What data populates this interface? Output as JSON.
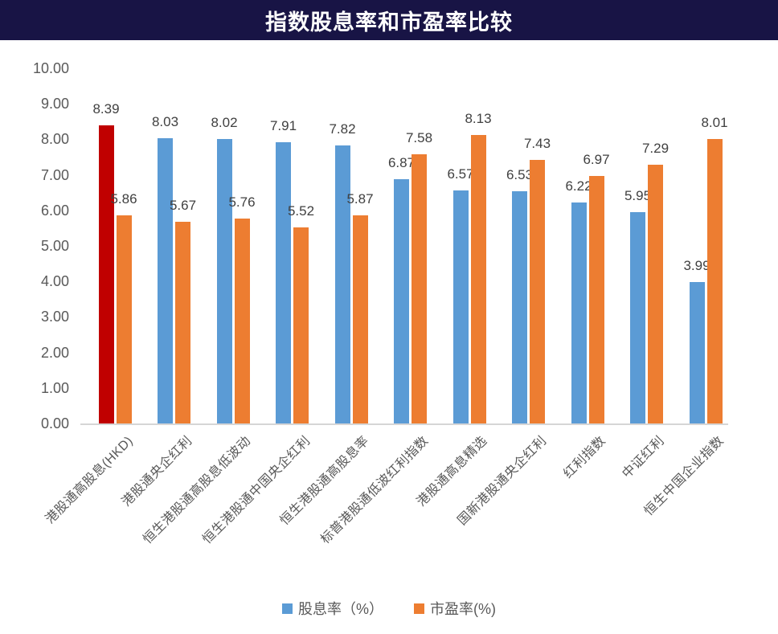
{
  "header": {
    "title": "指数股息率和市盈率比较",
    "bg_color": "#181445",
    "text_color": "#ffffff"
  },
  "chart_data": {
    "type": "bar",
    "title": "指数股息率和市盈率比较",
    "categories": [
      "港股通高股息(HKD)",
      "港股通央企红利",
      "恒生港股通高股息低波动",
      "恒生港股通中国央企红利",
      "恒生港股通高股息率",
      "标普港股通低波红利指数",
      "港股通高息精选",
      "国新港股通央企红利",
      "红利指数",
      "中证红利",
      "恒生中国企业指数"
    ],
    "series": [
      {
        "name": "股息率（%）",
        "color": "#5B9BD5",
        "values": [
          8.39,
          8.03,
          8.02,
          7.91,
          7.82,
          6.87,
          6.57,
          6.53,
          6.22,
          5.95,
          3.99
        ]
      },
      {
        "name": "市盈率(%)",
        "color": "#ED7D31",
        "values": [
          5.86,
          5.67,
          5.76,
          5.52,
          5.87,
          7.58,
          8.13,
          7.43,
          6.97,
          7.29,
          8.01
        ]
      }
    ],
    "highlight": {
      "series": 0,
      "index": 0,
      "color": "#C00000"
    },
    "ylim": [
      0,
      10
    ],
    "ytick_step": 1,
    "ytick_labels": [
      "0.00",
      "1.00",
      "2.00",
      "3.00",
      "4.00",
      "5.00",
      "6.00",
      "7.00",
      "8.00",
      "9.00",
      "10.00"
    ],
    "value_label_decimals": 2,
    "grid": false,
    "legend_position": "bottom",
    "axis_color": "#d6d6d6",
    "label_color": "#404040",
    "tick_color": "#595959"
  }
}
